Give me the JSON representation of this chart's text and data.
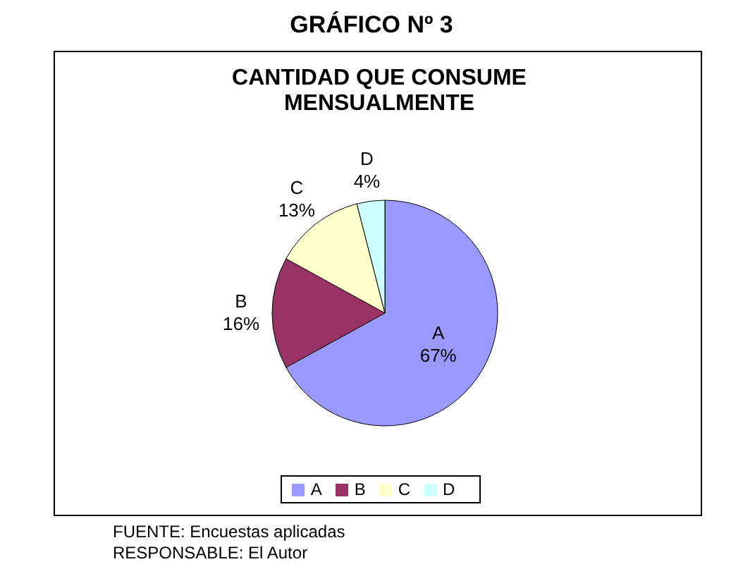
{
  "chart_data": {
    "type": "pie",
    "title": "GRÁFICO Nº 3",
    "subtitle": "CANTIDAD QUE CONSUME MENSUALMENTE",
    "categories": [
      "A",
      "B",
      "C",
      "D"
    ],
    "values": [
      67,
      16,
      13,
      4
    ],
    "value_labels": [
      "67%",
      "16%",
      "13%",
      "4%"
    ],
    "colors": [
      "#9999ff",
      "#993366",
      "#ffffcc",
      "#ccffff"
    ],
    "legend": "bottom",
    "annotations": [
      "FUENTE: Encuestas aplicadas",
      "RESPONSABLE: El Autor"
    ]
  }
}
